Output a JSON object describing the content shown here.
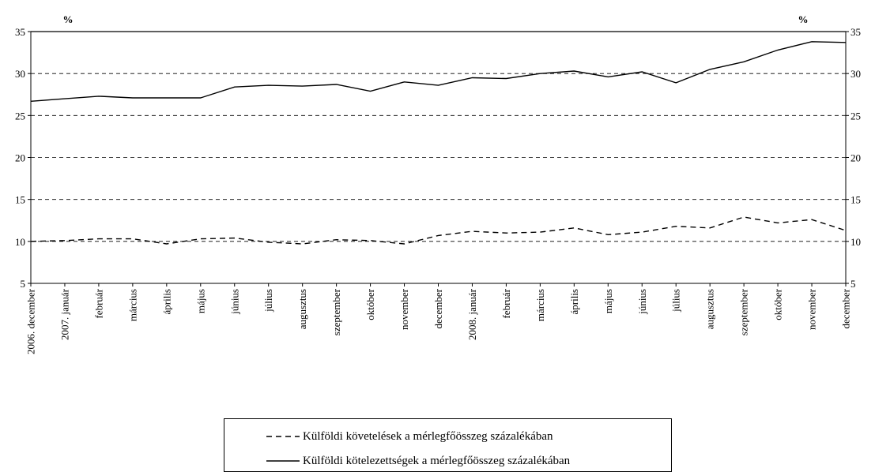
{
  "chart_data": {
    "type": "line",
    "categories": [
      "2006. december",
      "2007. január",
      "február",
      "március",
      "április",
      "május",
      "június",
      "július",
      "augusztus",
      "szeptember",
      "október",
      "november",
      "december",
      "2008. január",
      "február",
      "március",
      "április",
      "május",
      "június",
      "július",
      "augusztus",
      "szeptember",
      "október",
      "november",
      "december"
    ],
    "ylim": [
      5,
      35
    ],
    "yticks": [
      5,
      10,
      15,
      20,
      25,
      30,
      35
    ],
    "ylabel_left": "%",
    "ylabel_right": "%",
    "grid": true,
    "series": [
      {
        "name": "Külföldi követelések a mérlegfőösszeg százalékában",
        "style": "dashed",
        "values": [
          10.0,
          10.1,
          10.3,
          10.3,
          9.7,
          10.3,
          10.4,
          9.9,
          9.7,
          10.2,
          10.1,
          9.7,
          10.7,
          11.2,
          11.0,
          11.1,
          11.6,
          10.8,
          11.1,
          11.8,
          11.6,
          12.9,
          12.2,
          12.6,
          11.3
        ]
      },
      {
        "name": "Külföldi kötelezettségek a mérlegfőösszeg százalékában",
        "style": "solid",
        "values": [
          26.7,
          27.0,
          27.3,
          27.1,
          27.1,
          27.1,
          28.4,
          28.6,
          28.5,
          28.7,
          27.9,
          29.0,
          28.6,
          29.5,
          29.4,
          30.0,
          30.3,
          29.6,
          30.2,
          28.9,
          30.5,
          31.4,
          32.8,
          33.8,
          33.7
        ]
      }
    ],
    "legend_position": "bottom"
  }
}
